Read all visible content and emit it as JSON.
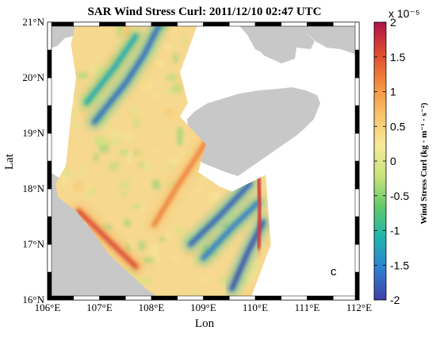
{
  "chart_data": {
    "type": "heatmap",
    "title": "SAR Wind Stress Curl: 2011/12/10 02:47 UTC",
    "xlabel": "Lon",
    "ylabel": "Lat",
    "xlim": [
      106,
      112
    ],
    "ylim": [
      16,
      21
    ],
    "x_ticks": [
      "106°E",
      "107°E",
      "108°E",
      "109°E",
      "110°E",
      "111°E",
      "112°E"
    ],
    "y_ticks": [
      "16°N",
      "17°N",
      "18°N",
      "19°N",
      "20°N",
      "21°N"
    ],
    "panel_label": "c",
    "colorbar": {
      "label": "Wind Stress Curl (kg · m⁻¹ · s⁻²)",
      "exponent": "x 10⁻⁵",
      "min": -2,
      "max": 2,
      "ticks": [
        "2",
        "1.5",
        "1",
        "0.5",
        "0",
        "-0.5",
        "-1",
        "-1.5",
        "-2"
      ],
      "colormap": [
        "#3f3fa8",
        "#2f7fd0",
        "#1fb3b0",
        "#5ec96a",
        "#c8e47a",
        "#f7ea9a",
        "#f9c46a",
        "#f38b3f",
        "#dd4a30",
        "#b0144a"
      ]
    },
    "land_color": "#c8c8c8",
    "features": [
      {
        "name": "negative curl band, northwest",
        "value": -1.7,
        "path": [
          [
            106.9,
            19.2
          ],
          [
            107.5,
            19.9
          ],
          [
            107.85,
            20.4
          ],
          [
            108.15,
            20.95
          ]
        ]
      },
      {
        "name": "negative curl streak, north",
        "value": -1.2,
        "path": [
          [
            106.75,
            19.55
          ],
          [
            107.3,
            20.2
          ],
          [
            107.7,
            20.75
          ]
        ]
      },
      {
        "name": "positive curl band, central",
        "value": 1.2,
        "path": [
          [
            108.05,
            17.35
          ],
          [
            108.5,
            18.05
          ],
          [
            108.85,
            18.55
          ],
          [
            109.05,
            18.85
          ]
        ]
      },
      {
        "name": "negative curl band, southeast 1",
        "value": -1.8,
        "path": [
          [
            108.75,
            17.0
          ],
          [
            109.3,
            17.5
          ],
          [
            109.9,
            18.1
          ]
        ]
      },
      {
        "name": "negative curl band, southeast 2",
        "value": -1.6,
        "path": [
          [
            109.0,
            16.75
          ],
          [
            109.55,
            17.3
          ],
          [
            110.05,
            17.75
          ]
        ]
      },
      {
        "name": "negative curl band, southeast 3",
        "value": -1.9,
        "path": [
          [
            109.55,
            16.2
          ],
          [
            109.85,
            16.85
          ],
          [
            110.15,
            17.4
          ]
        ]
      },
      {
        "name": "positive curl edge, east coast",
        "value": 1.8,
        "path": [
          [
            110.05,
            16.95
          ],
          [
            110.1,
            17.6
          ],
          [
            110.05,
            18.2
          ]
        ]
      },
      {
        "name": "positive curl edge, southwest coast",
        "value": 1.6,
        "path": [
          [
            106.6,
            17.6
          ],
          [
            107.2,
            17.05
          ],
          [
            107.7,
            16.6
          ]
        ]
      }
    ]
  }
}
